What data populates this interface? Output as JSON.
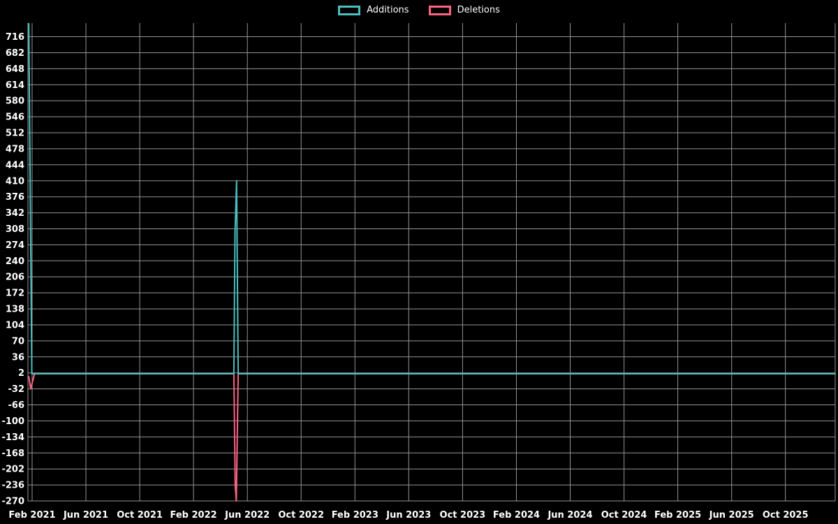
{
  "legend": {
    "items": [
      {
        "label": "Additions",
        "color": "#4bc0c0"
      },
      {
        "label": "Deletions",
        "color": "#ff6384"
      }
    ]
  },
  "chart_data": {
    "type": "line",
    "title": "",
    "background": "#000000",
    "text_color": "#ffffff",
    "grid_color": "#969696",
    "grid": "on",
    "legend_position": "top",
    "x_axis": {
      "domain_months": [
        -0.31,
        59.7
      ],
      "ticks": [
        {
          "month": 0,
          "label": "Feb 2021"
        },
        {
          "month": 4,
          "label": "Jun 2021"
        },
        {
          "month": 8,
          "label": "Oct 2021"
        },
        {
          "month": 12,
          "label": "Feb 2022"
        },
        {
          "month": 16,
          "label": "Jun 2022"
        },
        {
          "month": 20,
          "label": "Oct 2022"
        },
        {
          "month": 24,
          "label": "Feb 2023"
        },
        {
          "month": 28,
          "label": "Jun 2023"
        },
        {
          "month": 32,
          "label": "Oct 2023"
        },
        {
          "month": 36,
          "label": "Feb 2024"
        },
        {
          "month": 40,
          "label": "Jun 2024"
        },
        {
          "month": 44,
          "label": "Oct 2024"
        },
        {
          "month": 48,
          "label": "Feb 2025"
        },
        {
          "month": 52,
          "label": "Jun 2025"
        },
        {
          "month": 56,
          "label": "Oct 2025"
        }
      ]
    },
    "y_axis": {
      "top_value": 745,
      "bottom_value": -270,
      "ticks": [
        716,
        682,
        648,
        614,
        580,
        546,
        512,
        478,
        444,
        410,
        376,
        342,
        308,
        274,
        240,
        206,
        172,
        138,
        104,
        70,
        36,
        2,
        -32,
        -66,
        -100,
        -134,
        -168,
        -202,
        -236,
        -270
      ]
    },
    "series": [
      {
        "name": "Additions",
        "color": "#4bc0c0",
        "points": [
          [
            -0.25,
            744
          ],
          [
            -0.02,
            0
          ],
          [
            15.0,
            0
          ],
          [
            15.08,
            300
          ],
          [
            15.13,
            340
          ],
          [
            15.2,
            410
          ],
          [
            15.32,
            0
          ],
          [
            59.7,
            0
          ]
        ]
      },
      {
        "name": "Deletions",
        "color": "#ff6384",
        "points": [
          [
            -0.25,
            -6
          ],
          [
            -0.1,
            -32
          ],
          [
            0.18,
            0
          ],
          [
            15.0,
            0
          ],
          [
            15.1,
            -236
          ],
          [
            15.18,
            -270
          ],
          [
            15.32,
            0
          ],
          [
            59.7,
            0
          ]
        ]
      }
    ]
  }
}
